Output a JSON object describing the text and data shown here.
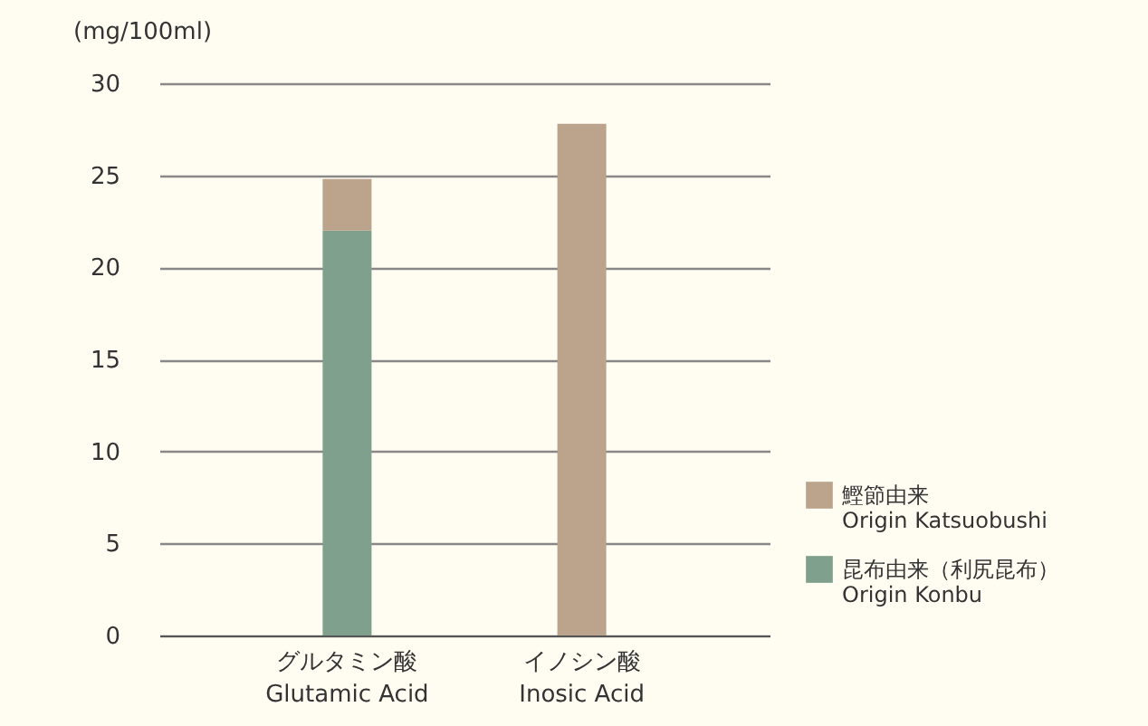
{
  "chart_data": {
    "type": "bar",
    "ylabel": "(mg/100ml)",
    "categories": [
      "グルタミン酸\nGlutamic Acid",
      "イノシン酸\nInosic Acid"
    ],
    "series": [
      {
        "name": "昆布由来（利尻昆布）\nOrigin Konbu",
        "color": "#7fa08c",
        "values": [
          22,
          null
        ]
      },
      {
        "name": "鰹節由来\nOrigin Katsuobushi",
        "color": "#bba38c",
        "values": [
          2.8,
          27.8
        ]
      }
    ],
    "stacked": true,
    "ylim": [
      0,
      30
    ],
    "yticks": [
      0,
      5,
      10,
      15,
      20,
      25,
      30
    ],
    "grid": "y",
    "legend": "bottom right"
  }
}
